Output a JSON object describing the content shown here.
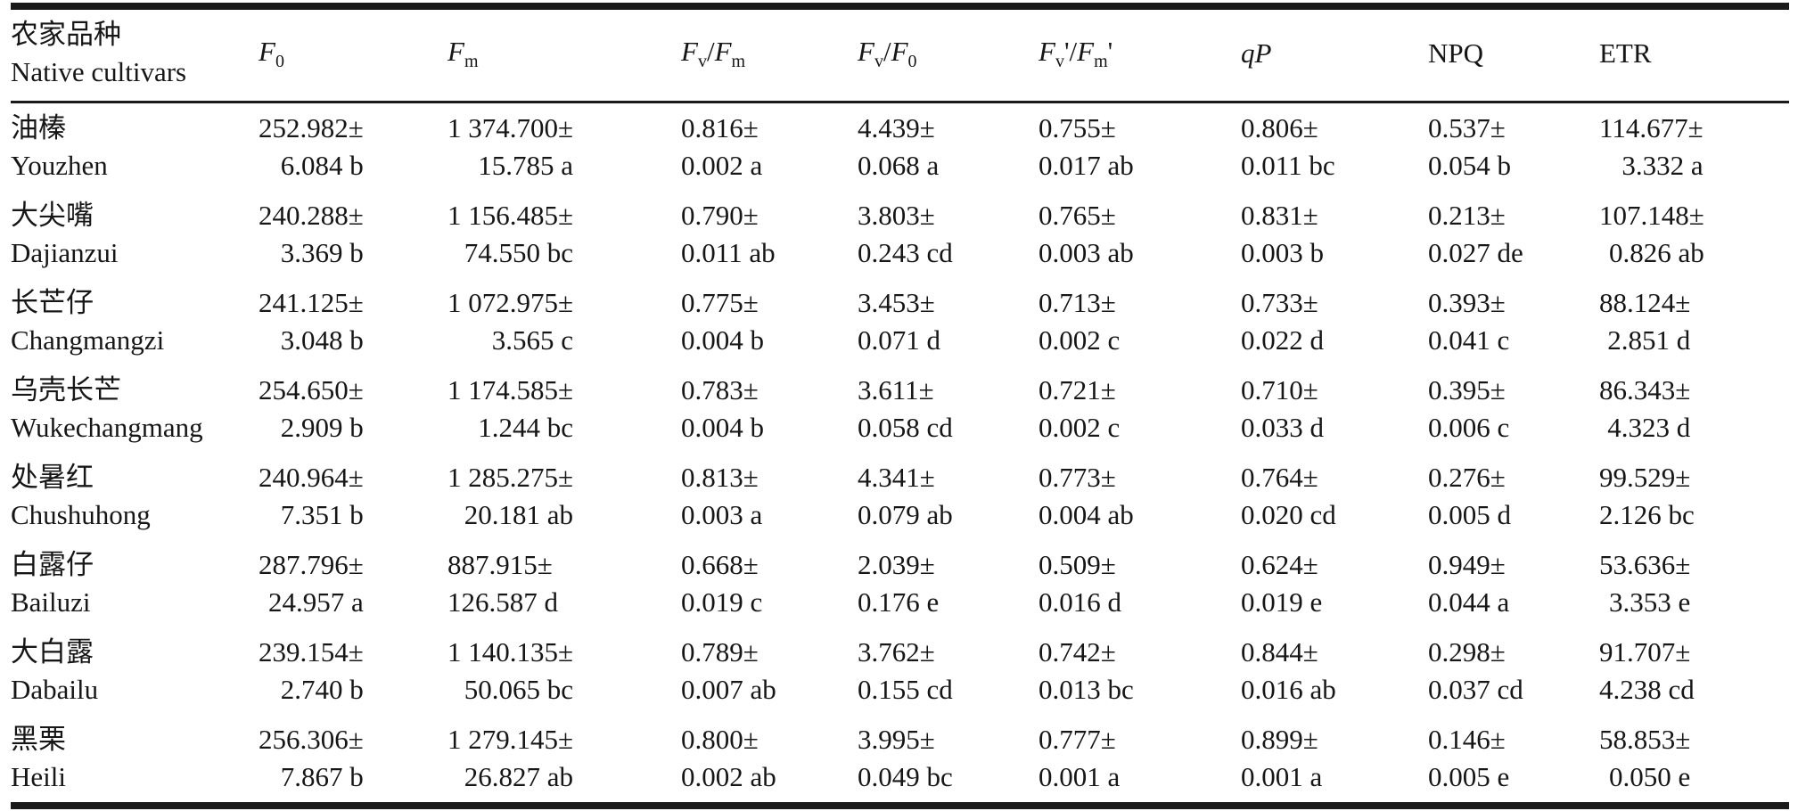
{
  "colors": {
    "background": "#ffffff",
    "text": "#161616",
    "rule": "#1a1a1a"
  },
  "table": {
    "header": {
      "name_col": {
        "line1": "农家品种",
        "line2": "Native cultivars"
      },
      "params": [
        {
          "id": "f0",
          "segments": [
            {
              "t": "F",
              "i": true
            },
            {
              "t": "0",
              "sub": true
            }
          ]
        },
        {
          "id": "fm",
          "segments": [
            {
              "t": "F",
              "i": true
            },
            {
              "t": "m",
              "sub": true
            }
          ]
        },
        {
          "id": "fv-fm",
          "segments": [
            {
              "t": "F",
              "i": true
            },
            {
              "t": "v",
              "sub": true
            },
            {
              "t": "/"
            },
            {
              "t": "F",
              "i": true
            },
            {
              "t": "m",
              "sub": true
            }
          ]
        },
        {
          "id": "fv-f0",
          "segments": [
            {
              "t": "F",
              "i": true
            },
            {
              "t": "v",
              "sub": true
            },
            {
              "t": "/"
            },
            {
              "t": "F",
              "i": true
            },
            {
              "t": "0",
              "sub": true
            }
          ]
        },
        {
          "id": "fvp-fmp",
          "segments": [
            {
              "t": "F",
              "i": true
            },
            {
              "t": "v",
              "sub": true
            },
            {
              "t": "'"
            },
            {
              "t": "/"
            },
            {
              "t": "F",
              "i": true
            },
            {
              "t": "m",
              "sub": true
            },
            {
              "t": "'"
            }
          ]
        },
        {
          "id": "qp",
          "segments": [
            {
              "t": "q",
              "i": true
            },
            {
              "t": "P",
              "i": true
            }
          ]
        },
        {
          "id": "npq",
          "segments": [
            {
              "t": "NPQ"
            }
          ]
        },
        {
          "id": "etr",
          "segments": [
            {
              "t": "ETR"
            }
          ]
        }
      ]
    },
    "rows": [
      {
        "cn": "油榛",
        "en": "Youzhen",
        "cells": [
          {
            "v": "252.982±",
            "e": "6.084 b"
          },
          {
            "v": "1 374.700±",
            "e": "15.785 a"
          },
          {
            "v": "0.816±",
            "e": "0.002 a"
          },
          {
            "v": "4.439±",
            "e": "0.068 a"
          },
          {
            "v": "0.755±",
            "e": "0.017 ab"
          },
          {
            "v": "0.806±",
            "e": "0.011 bc"
          },
          {
            "v": "0.537±",
            "e": "0.054 b"
          },
          {
            "v": "114.677±",
            "e": "3.332 a"
          }
        ]
      },
      {
        "cn": "大尖嘴",
        "en": "Dajianzui",
        "cells": [
          {
            "v": "240.288±",
            "e": "3.369 b"
          },
          {
            "v": "1 156.485±",
            "e": "74.550 bc"
          },
          {
            "v": "0.790±",
            "e": "0.011 ab"
          },
          {
            "v": "3.803±",
            "e": "0.243 cd"
          },
          {
            "v": "0.765±",
            "e": "0.003 ab"
          },
          {
            "v": "0.831±",
            "e": "0.003 b"
          },
          {
            "v": "0.213±",
            "e": "0.027 de"
          },
          {
            "v": "107.148±",
            "e": "0.826 ab"
          }
        ]
      },
      {
        "cn": "长芒仔",
        "en": "Changmangzi",
        "cells": [
          {
            "v": "241.125±",
            "e": "3.048 b"
          },
          {
            "v": "1 072.975±",
            "e": "3.565 c"
          },
          {
            "v": "0.775±",
            "e": "0.004 b"
          },
          {
            "v": "3.453±",
            "e": "0.071 d"
          },
          {
            "v": "0.713±",
            "e": "0.002 c"
          },
          {
            "v": "0.733±",
            "e": "0.022 d"
          },
          {
            "v": "0.393±",
            "e": "0.041 c"
          },
          {
            "v": "88.124±",
            "e": "2.851 d"
          }
        ]
      },
      {
        "cn": "乌壳长芒",
        "en": "Wukechangmang",
        "cells": [
          {
            "v": "254.650±",
            "e": "2.909 b"
          },
          {
            "v": "1 174.585±",
            "e": "1.244 bc"
          },
          {
            "v": "0.783±",
            "e": "0.004 b"
          },
          {
            "v": "3.611±",
            "e": "0.058 cd"
          },
          {
            "v": "0.721±",
            "e": "0.002 c"
          },
          {
            "v": "0.710±",
            "e": "0.033 d"
          },
          {
            "v": "0.395±",
            "e": "0.006 c"
          },
          {
            "v": "86.343±",
            "e": "4.323 d"
          }
        ]
      },
      {
        "cn": "处暑红",
        "en": "Chushuhong",
        "cells": [
          {
            "v": "240.964±",
            "e": "7.351 b"
          },
          {
            "v": "1 285.275±",
            "e": "20.181 ab"
          },
          {
            "v": "0.813±",
            "e": "0.003 a"
          },
          {
            "v": "4.341±",
            "e": "0.079 ab"
          },
          {
            "v": "0.773±",
            "e": "0.004 ab"
          },
          {
            "v": "0.764±",
            "e": "0.020 cd"
          },
          {
            "v": "0.276±",
            "e": "0.005 d"
          },
          {
            "v": "99.529±",
            "e": "2.126 bc"
          }
        ]
      },
      {
        "cn": "白露仔",
        "en": "Bailuzi",
        "cells": [
          {
            "v": "287.796±",
            "e": "24.957 a"
          },
          {
            "v": "887.915±",
            "e": "126.587 d"
          },
          {
            "v": "0.668±",
            "e": "0.019 c"
          },
          {
            "v": "2.039±",
            "e": "0.176 e"
          },
          {
            "v": "0.509±",
            "e": "0.016 d"
          },
          {
            "v": "0.624±",
            "e": "0.019 e"
          },
          {
            "v": "0.949±",
            "e": "0.044 a"
          },
          {
            "v": "53.636±",
            "e": "3.353 e"
          }
        ]
      },
      {
        "cn": "大白露",
        "en": "Dabailu",
        "cells": [
          {
            "v": "239.154±",
            "e": "2.740 b"
          },
          {
            "v": "1 140.135±",
            "e": "50.065 bc"
          },
          {
            "v": "0.789±",
            "e": "0.007 ab"
          },
          {
            "v": "3.762±",
            "e": "0.155 cd"
          },
          {
            "v": "0.742±",
            "e": "0.013 bc"
          },
          {
            "v": "0.844±",
            "e": "0.016 ab"
          },
          {
            "v": "0.298±",
            "e": "0.037 cd"
          },
          {
            "v": "91.707±",
            "e": "4.238 cd"
          }
        ]
      },
      {
        "cn": "黑栗",
        "en": "Heili",
        "cells": [
          {
            "v": "256.306±",
            "e": "7.867 b"
          },
          {
            "v": "1 279.145±",
            "e": "26.827 ab"
          },
          {
            "v": "0.800±",
            "e": "0.002 ab"
          },
          {
            "v": "3.995±",
            "e": "0.049 bc"
          },
          {
            "v": "0.777±",
            "e": "0.001 a"
          },
          {
            "v": "0.899±",
            "e": "0.001 a"
          },
          {
            "v": "0.146±",
            "e": "0.005 e"
          },
          {
            "v": "58.853±",
            "e": "0.050 e"
          }
        ]
      }
    ]
  }
}
